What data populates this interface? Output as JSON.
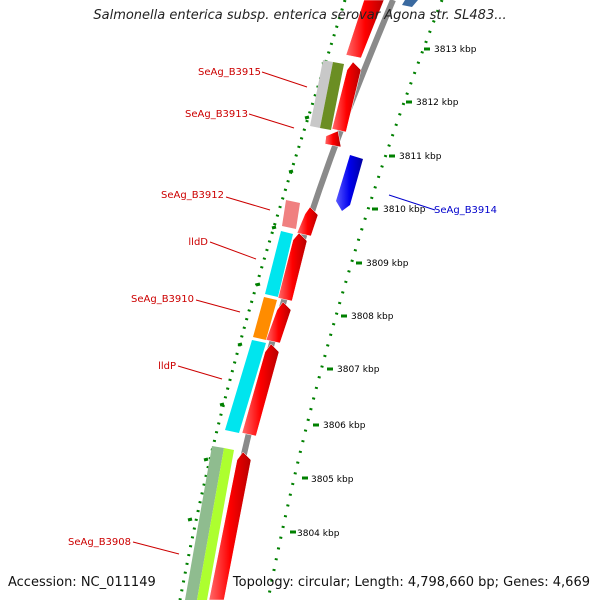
{
  "title": "Salmonella enterica subsp. enterica serovar Agona str. SL483...",
  "accession": "Accession: NC_011149",
  "summary": "Topology: circular; Length: 4,798,660 bp; Genes: 4,669",
  "kbp_labels": [
    "3813 kbp",
    "3812 kbp",
    "3811 kbp",
    "3810 kbp",
    "3809 kbp",
    "3808 kbp",
    "3807 kbp",
    "3806 kbp",
    "3805 kbp",
    "3804 kbp"
  ],
  "gene_labels": [
    "SeAg_B3915",
    "SeAg_B3913",
    "SeAg_B3912",
    "lldD",
    "SeAg_B3910",
    "lldP",
    "SeAg_B3908",
    "SeAg_B3914"
  ],
  "colors": {
    "forward_cds": "#ff0000",
    "reverse_cds": "#0000ee",
    "label_red": "#cc0000",
    "label_blue": "#0000cc",
    "backbone": "#888888",
    "ticks": "#008000",
    "cyan": "#00e5ee",
    "orange": "#ff8c00",
    "pink": "#f08080",
    "olive": "#6b8e23",
    "lightgray": "#c8c8c8",
    "yellowgreen": "#adff2f",
    "sage": "#8fbc8f"
  }
}
